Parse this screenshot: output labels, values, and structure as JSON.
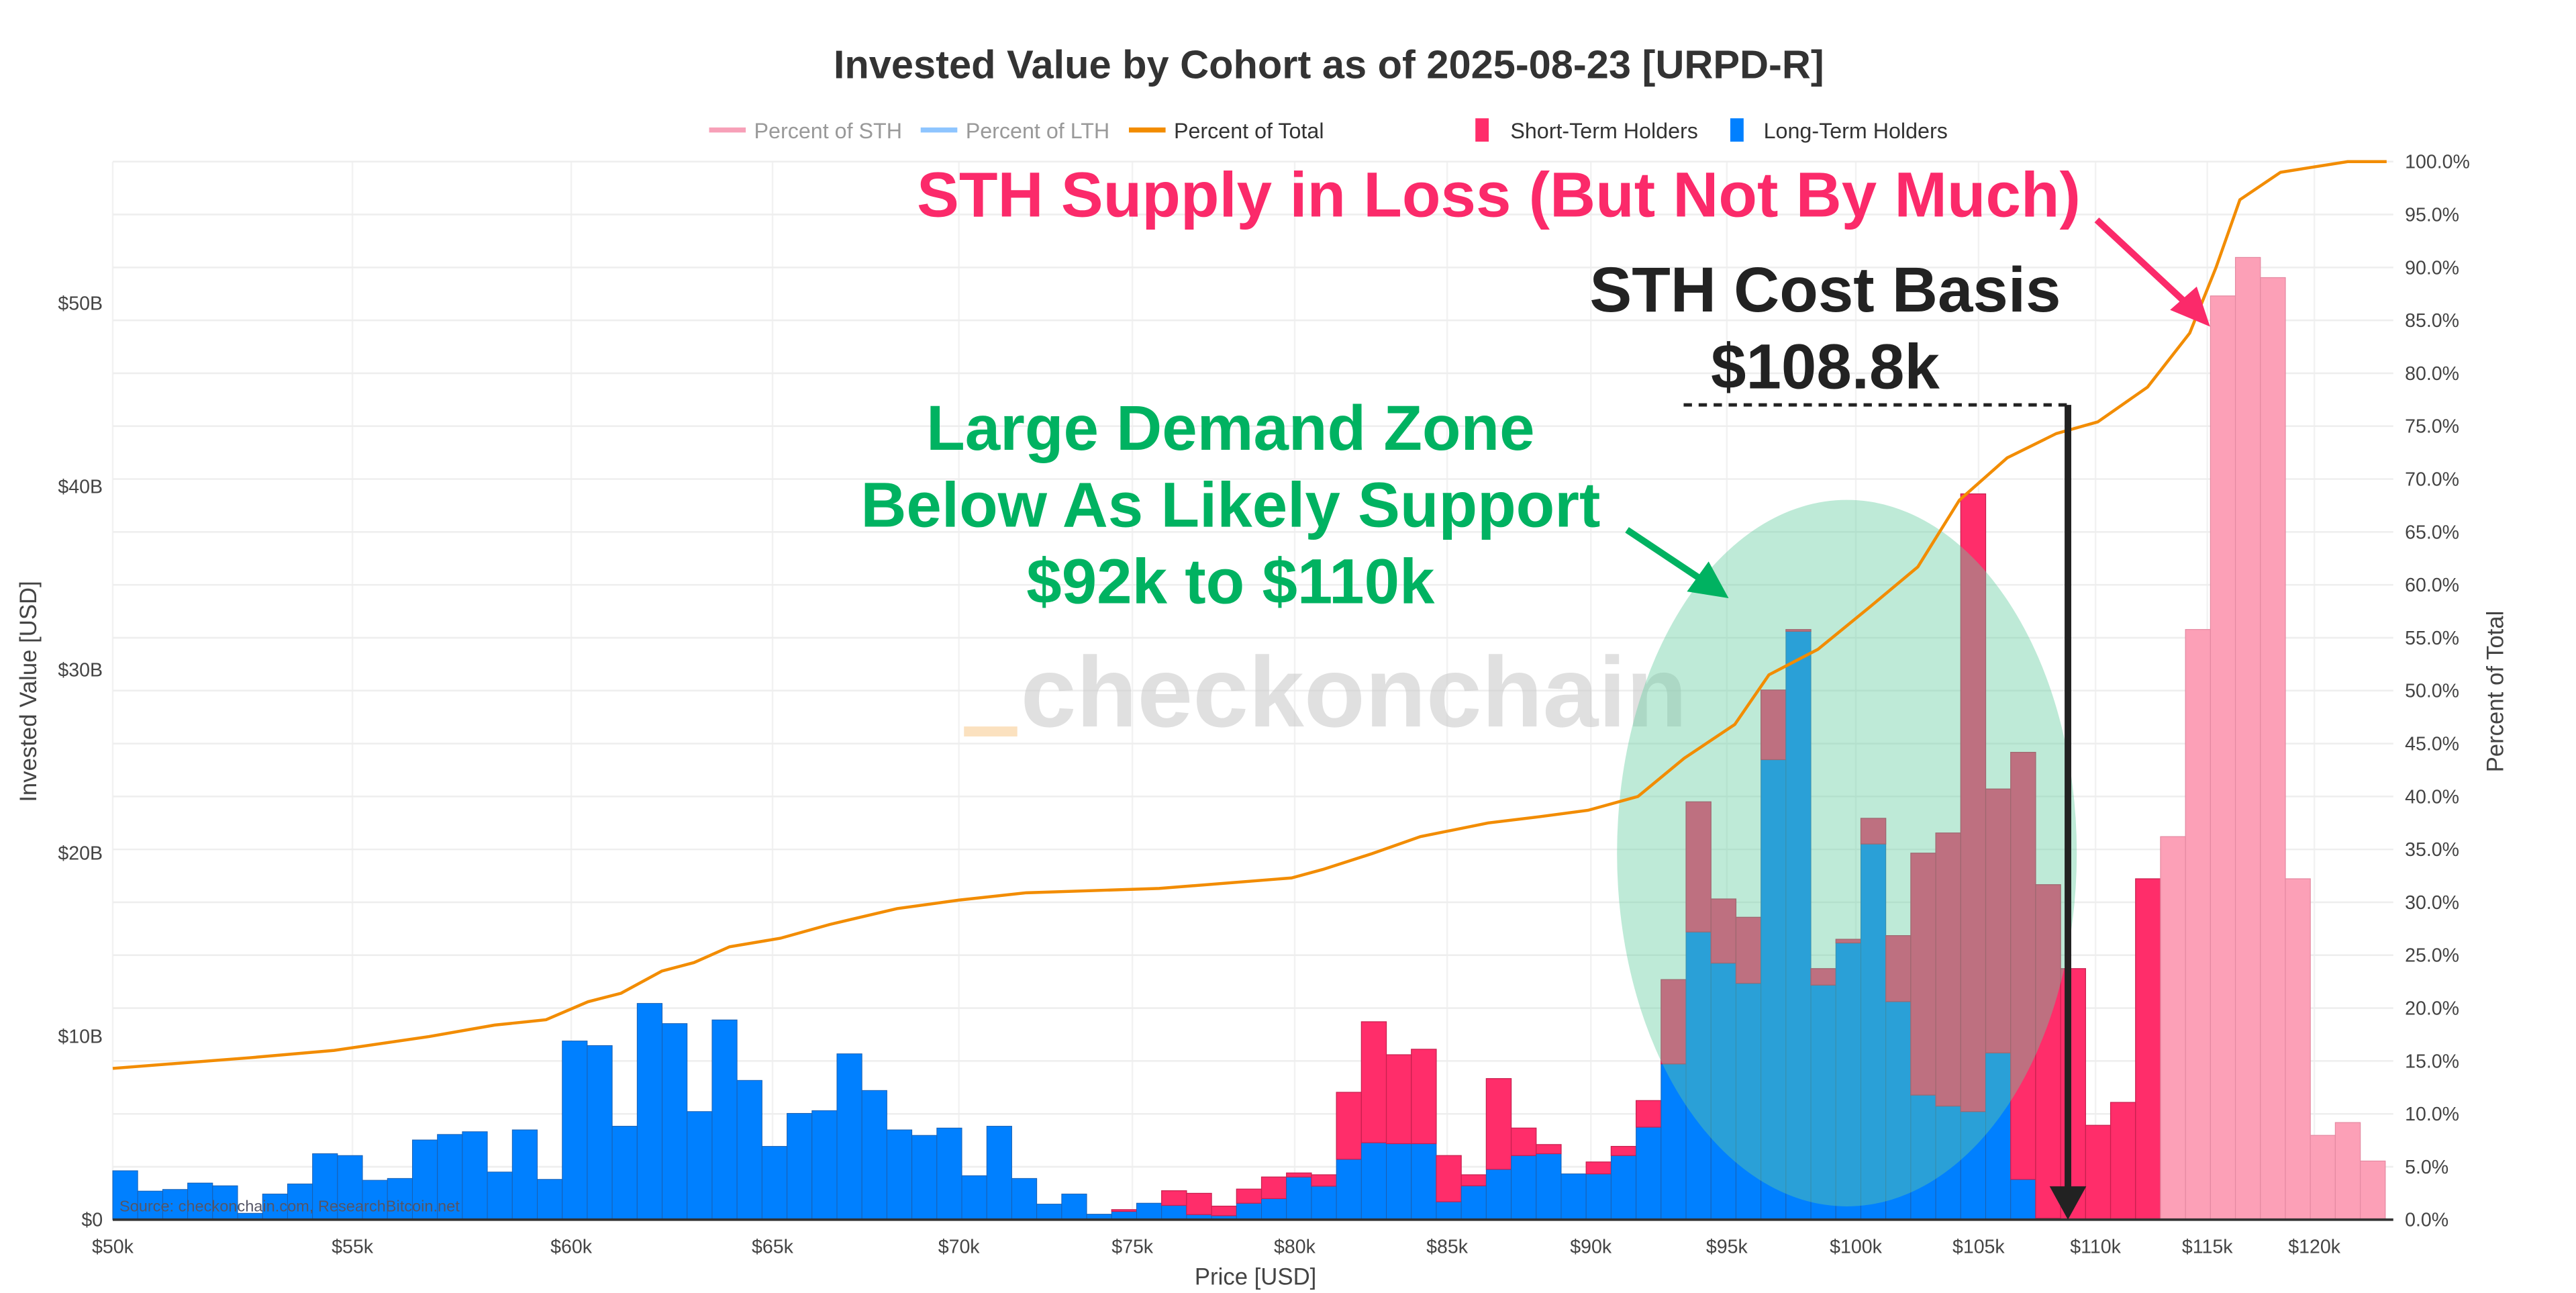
{
  "title": "Invested Value by Cohort as of 2025-08-23 [URPD-R]",
  "legend": {
    "items": [
      {
        "label": "Percent of STH",
        "kind": "line",
        "color": "#f7a0b8",
        "hidden": true
      },
      {
        "label": "Percent of LTH",
        "kind": "line",
        "color": "#8ec5ff",
        "hidden": true
      },
      {
        "label": "Percent of Total",
        "kind": "line",
        "color": "#f28c00",
        "hidden": false
      },
      {
        "label": "Short-Term Holders",
        "kind": "box",
        "color": "#ff2d6a",
        "hidden": false
      },
      {
        "label": "Long-Term Holders",
        "kind": "box",
        "color": "#0080ff",
        "hidden": false
      }
    ]
  },
  "annotations": {
    "sth_loss": "STH Supply in Loss (But Not By Much)",
    "cost_basis_title": "STH Cost Basis",
    "cost_basis_value": "$108.8k",
    "cost_basis_usd": 108800,
    "demand_zone": [
      "Large Demand Zone",
      "Below As Likely Support",
      "$92k to $110k"
    ],
    "demand_zone_range_usd": [
      92000,
      110000
    ],
    "watermark": "checkonchain",
    "source": "Source: checkonchain.com, ResearchBitcoin.net"
  },
  "colors": {
    "sth": "#ff2d6a",
    "sth_faded": "#fca0b7",
    "lth": "#0080ff",
    "total_line": "#f28c00",
    "annot_pink": "#fb2a6a",
    "annot_green": "#00b261",
    "annot_dark": "#222222",
    "zone_fill": "#64cda0"
  },
  "chart_data": {
    "type": "bar",
    "stacked": true,
    "title": "Invested Value by Cohort as of 2025-08-23 [URPD-R]",
    "xlabel": "Price [USD]",
    "ylabel": "Invested Value [USD]",
    "y2label": "Percent of Total",
    "x_scale": "log",
    "xlim": [
      50000,
      123500
    ],
    "ylim": [
      0,
      57.7
    ],
    "y_unit": "USD billions",
    "y2lim": [
      0,
      100
    ],
    "x_ticks": [
      {
        "value": 50000,
        "label": "$50k"
      },
      {
        "value": 55000,
        "label": "$55k"
      },
      {
        "value": 60000,
        "label": "$60k"
      },
      {
        "value": 65000,
        "label": "$65k"
      },
      {
        "value": 70000,
        "label": "$70k"
      },
      {
        "value": 75000,
        "label": "$75k"
      },
      {
        "value": 80000,
        "label": "$80k"
      },
      {
        "value": 85000,
        "label": "$85k"
      },
      {
        "value": 90000,
        "label": "$90k"
      },
      {
        "value": 95000,
        "label": "$95k"
      },
      {
        "value": 100000,
        "label": "$100k"
      },
      {
        "value": 105000,
        "label": "$105k"
      },
      {
        "value": 110000,
        "label": "$110k"
      },
      {
        "value": 115000,
        "label": "$115k"
      },
      {
        "value": 120000,
        "label": "$120k"
      }
    ],
    "y_ticks": [
      {
        "value": 0,
        "label": "$0"
      },
      {
        "value": 10,
        "label": "$10B"
      },
      {
        "value": 20,
        "label": "$20B"
      },
      {
        "value": 30,
        "label": "$30B"
      },
      {
        "value": 40,
        "label": "$40B"
      },
      {
        "value": 50,
        "label": "$50B"
      }
    ],
    "y2_ticks": [
      "0.0%",
      "5.0%",
      "10.0%",
      "15.0%",
      "20.0%",
      "25.0%",
      "30.0%",
      "35.0%",
      "40.0%",
      "45.0%",
      "50.0%",
      "55.0%",
      "60.0%",
      "65.0%",
      "70.0%",
      "75.0%",
      "80.0%",
      "85.0%",
      "90.0%",
      "95.0%",
      "100.0%"
    ],
    "bins": {
      "first_bin_low_usd": 50000,
      "bin_ratio": 1.00998
    },
    "faded_sth_from_bar": 82,
    "series": [
      {
        "name": "Long-Term Holders",
        "values": [
          2.67,
          1.56,
          1.65,
          2.0,
          1.85,
          0.35,
          1.4,
          1.95,
          3.6,
          3.5,
          2.15,
          2.25,
          4.35,
          4.65,
          4.8,
          2.6,
          4.9,
          2.2,
          9.75,
          9.5,
          5.1,
          11.8,
          10.7,
          5.9,
          10.9,
          7.6,
          4.0,
          5.8,
          5.95,
          9.05,
          7.05,
          4.9,
          4.6,
          5.0,
          2.4,
          5.1,
          2.25,
          0.85,
          1.4,
          0.3,
          0.45,
          0.9,
          0.78,
          0.28,
          0.22,
          0.9,
          1.15,
          2.33,
          1.83,
          3.3,
          4.2,
          4.15,
          4.15,
          0.98,
          1.85,
          2.75,
          3.5,
          3.6,
          2.5,
          2.5,
          3.5,
          5.05,
          8.5,
          15.7,
          14.0,
          12.9,
          25.1,
          32.1,
          12.8,
          15.1,
          20.5,
          11.9,
          6.8,
          6.2,
          5.9,
          9.1,
          2.2,
          0.08,
          0,
          0,
          0,
          0,
          0,
          0,
          0,
          0,
          0,
          0,
          0,
          0,
          0
        ]
      },
      {
        "name": "Short-Term Holders",
        "values": [
          0,
          0,
          0,
          0,
          0,
          0,
          0,
          0,
          0,
          0,
          0,
          0,
          0,
          0,
          0,
          0,
          0,
          0,
          0,
          0,
          0,
          0,
          0,
          0,
          0,
          0,
          0,
          0,
          0,
          0,
          0,
          0,
          0,
          0,
          0,
          0,
          0,
          0,
          0,
          0,
          0.1,
          0,
          0.8,
          1.16,
          0.52,
          0.77,
          1.18,
          0.22,
          0.62,
          3.65,
          6.6,
          4.85,
          5.15,
          2.52,
          0.6,
          4.95,
          1.5,
          0.5,
          0,
          0.65,
          0.5,
          1.45,
          4.6,
          7.1,
          3.5,
          3.6,
          3.8,
          0.1,
          0.9,
          0.2,
          1.4,
          3.6,
          13.2,
          14.9,
          33.7,
          14.4,
          23.3,
          18.2,
          13.7,
          5.15,
          6.4,
          18.6,
          20.9,
          32.2,
          50.4,
          52.5,
          51.4,
          18.6,
          4.6,
          5.3,
          3.2
        ]
      },
      {
        "name": "Percent of Total",
        "axis": "y2",
        "type": "line",
        "x": [
          50000,
          52800,
          54600,
          56700,
          58200,
          59400,
          60400,
          61200,
          62200,
          63000,
          63900,
          65200,
          66500,
          68300,
          70000,
          71900,
          75800,
          79900,
          80900,
          82500,
          84100,
          86400,
          88200,
          89900,
          91700,
          93400,
          95300,
          96600,
          98500,
          100500,
          102500,
          104200,
          106200,
          108300,
          110100,
          112300,
          114200,
          115400,
          116500,
          118400,
          121600,
          123500
        ],
        "y": [
          14.3,
          15.3,
          16.0,
          17.3,
          18.4,
          18.9,
          20.6,
          21.4,
          23.5,
          24.3,
          25.8,
          26.6,
          27.9,
          29.4,
          30.2,
          30.9,
          31.3,
          32.3,
          33.1,
          34.6,
          36.2,
          37.5,
          38.1,
          38.7,
          40.0,
          43.6,
          46.8,
          51.5,
          53.9,
          57.8,
          61.7,
          68.0,
          72.0,
          74.3,
          75.4,
          78.7,
          83.8,
          90.0,
          96.4,
          99.0,
          100.0,
          100.0
        ]
      }
    ]
  }
}
